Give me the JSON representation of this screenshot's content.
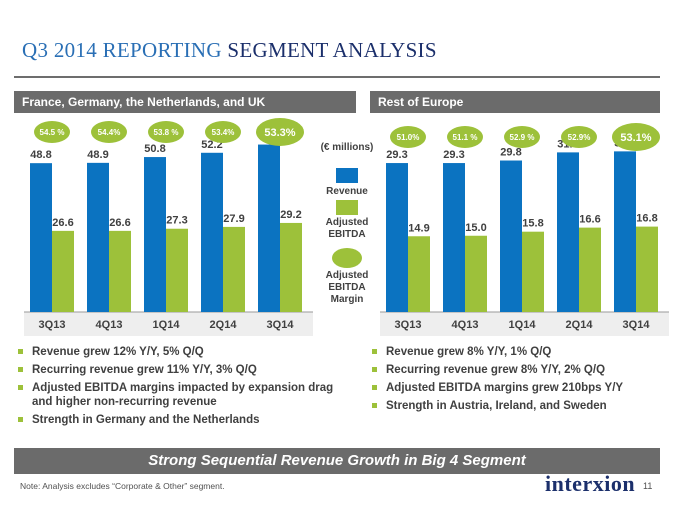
{
  "header": {
    "title_main": "Q3 2014 REPORTING",
    "title_accent": "SEGMENT ANALYSIS"
  },
  "legend": {
    "unit": "(€ millions)",
    "revenue_label": "Revenue",
    "ebitda_label": "Adjusted EBITDA",
    "margin_label": "Adjusted EBITDA Margin"
  },
  "colors": {
    "revenue": "#0b73c1",
    "ebitda": "#9dc13a",
    "margin_bubble": "#9dc13a",
    "header_bar": "#6b6b6b"
  },
  "chart_data": [
    {
      "type": "bar",
      "title": "France, Germany, the Netherlands, and UK",
      "categories": [
        "3Q13",
        "4Q13",
        "1Q14",
        "2Q14",
        "3Q14"
      ],
      "series": [
        {
          "name": "Revenue",
          "values": [
            48.8,
            48.9,
            50.8,
            52.2,
            54.9
          ],
          "labels": [
            "48.8",
            "48.9",
            "50.8",
            "52.2",
            "54.9"
          ]
        },
        {
          "name": "Adjusted EBITDA",
          "values": [
            26.6,
            26.6,
            27.3,
            27.9,
            29.2
          ],
          "labels": [
            "26.6",
            "26.6",
            "27.3",
            "27.9",
            "29.2"
          ]
        }
      ],
      "margins": [
        "54.5 %",
        "54.4%",
        "53.8 %",
        "53.4%",
        "53.3%"
      ],
      "ylim": [
        0,
        60
      ]
    },
    {
      "type": "bar",
      "title": "Rest of Europe",
      "categories": [
        "3Q13",
        "4Q13",
        "1Q14",
        "2Q14",
        "3Q14"
      ],
      "series": [
        {
          "name": "Revenue",
          "values": [
            29.3,
            29.3,
            29.8,
            31.4,
            31.6
          ],
          "labels": [
            "29.3",
            "29.3",
            "29.8",
            "31.4",
            "31.6"
          ]
        },
        {
          "name": "Adjusted EBITDA",
          "values": [
            14.9,
            15.0,
            15.8,
            16.6,
            16.8
          ],
          "labels": [
            "14.9",
            "15.0",
            "15.8",
            "16.6",
            "16.8"
          ]
        }
      ],
      "margins": [
        "51.0%",
        "51.1 %",
        "52.9 %",
        "52.9%",
        "53.1%"
      ],
      "ylim": [
        0,
        36
      ]
    }
  ],
  "bullets_left": [
    "Revenue grew 12% Y/Y, 5% Q/Q",
    "Recurring revenue grew 11% Y/Y, 3% Q/Q",
    "Adjusted EBITDA margins impacted by expansion drag and higher non-recurring revenue",
    "Strength in Germany and the Netherlands"
  ],
  "bullets_right": [
    "Revenue grew 8% Y/Y, 1% Q/Q",
    "Recurring revenue grew 8% Y/Y, 2% Q/Q",
    "Adjusted EBITDA margins grew 210bps Y/Y",
    "Strength in Austria, Ireland, and Sweden"
  ],
  "banner": "Strong Sequential Revenue Growth in Big 4 Segment",
  "footer": {
    "note": "Note: Analysis excludes “Corporate & Other” segment.",
    "logo": "interxion",
    "page": "11"
  }
}
